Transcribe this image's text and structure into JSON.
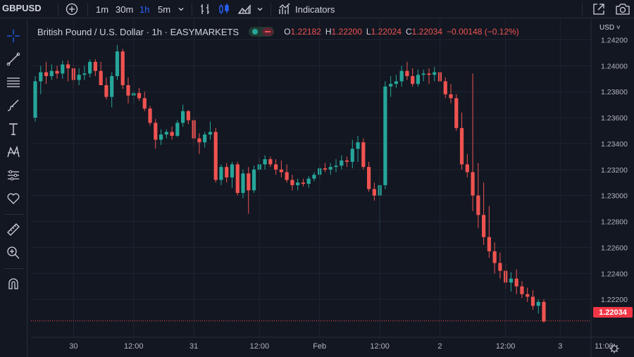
{
  "topbar": {
    "symbol": "GBPUSD",
    "intervals": [
      "1m",
      "30m",
      "1h",
      "5m"
    ],
    "active_interval": "1h",
    "indicators_label": "Indicators"
  },
  "legend": {
    "title": "British Pound / U.S. Dollar · 1h · EASYMARKETS",
    "o_label": "O",
    "o_value": "1.22182",
    "h_label": "H",
    "h_value": "1.22200",
    "l_label": "L",
    "l_value": "1.22024",
    "c_label": "C",
    "c_value": "1.22034",
    "change": "−0.00148 (−0.12%)"
  },
  "currency": "USD ˅",
  "last_price": "1.22034",
  "colors": {
    "up": "#26a69a",
    "down": "#ef5350",
    "bg": "#131722",
    "grid": "#1f2430",
    "text": "#b2b5be"
  },
  "chart_data": {
    "type": "candlestick",
    "y_ticks": [
      "1.24200",
      "1.24000",
      "1.23800",
      "1.23600",
      "1.23400",
      "1.23200",
      "1.23000",
      "1.22800",
      "1.22600",
      "1.22400",
      "1.22200"
    ],
    "y_tick_values": [
      1.242,
      1.24,
      1.238,
      1.236,
      1.234,
      1.232,
      1.23,
      1.228,
      1.226,
      1.224,
      1.222
    ],
    "x_ticks": [
      "30",
      "12:00",
      "31",
      "12:00",
      "Feb",
      "12:00",
      "2",
      "12:00",
      "3",
      "11:00"
    ],
    "ylim": [
      1.22,
      1.2436
    ],
    "last_price": 1.22034,
    "candles": [
      [
        1.236,
        1.2392,
        1.2357,
        1.2388
      ],
      [
        1.2388,
        1.24,
        1.2378,
        1.2395
      ],
      [
        1.2395,
        1.2403,
        1.2386,
        1.2392
      ],
      [
        1.2392,
        1.2401,
        1.2389,
        1.2396
      ],
      [
        1.2396,
        1.24,
        1.239,
        1.2394
      ],
      [
        1.2394,
        1.2404,
        1.239,
        1.2401
      ],
      [
        1.2401,
        1.2404,
        1.2388,
        1.2398
      ],
      [
        1.2398,
        1.2402,
        1.2383,
        1.2389
      ],
      [
        1.2389,
        1.2398,
        1.2385,
        1.2393
      ],
      [
        1.2393,
        1.24,
        1.2389,
        1.2394
      ],
      [
        1.2394,
        1.2405,
        1.2391,
        1.2403
      ],
      [
        1.2403,
        1.2405,
        1.2392,
        1.2396
      ],
      [
        1.2396,
        1.2403,
        1.2385,
        1.2385
      ],
      [
        1.2385,
        1.2391,
        1.2374,
        1.2376
      ],
      [
        1.2376,
        1.2395,
        1.2368,
        1.2392
      ],
      [
        1.2392,
        1.2416,
        1.2389,
        1.2411
      ],
      [
        1.2411,
        1.2413,
        1.2382,
        1.2385
      ],
      [
        1.2385,
        1.2391,
        1.2371,
        1.2377
      ],
      [
        1.2377,
        1.2381,
        1.237,
        1.2379
      ],
      [
        1.2379,
        1.2383,
        1.2373,
        1.2375
      ],
      [
        1.2375,
        1.238,
        1.2365,
        1.2367
      ],
      [
        1.2367,
        1.2369,
        1.2354,
        1.2356
      ],
      [
        1.2356,
        1.2359,
        1.2336,
        1.2343
      ],
      [
        1.2343,
        1.2351,
        1.2339,
        1.2347
      ],
      [
        1.2347,
        1.2351,
        1.2344,
        1.2349
      ],
      [
        1.2349,
        1.2353,
        1.2343,
        1.2346
      ],
      [
        1.2346,
        1.2358,
        1.2345,
        1.2356
      ],
      [
        1.2356,
        1.237,
        1.2353,
        1.2365
      ],
      [
        1.2365,
        1.2366,
        1.2355,
        1.2358
      ],
      [
        1.2358,
        1.236,
        1.2338,
        1.2344
      ],
      [
        1.2344,
        1.2348,
        1.2332,
        1.2341
      ],
      [
        1.2341,
        1.2349,
        1.2337,
        1.2347
      ],
      [
        1.2347,
        1.2357,
        1.2343,
        1.2349
      ],
      [
        1.2349,
        1.2352,
        1.231,
        1.2312
      ],
      [
        1.2312,
        1.2324,
        1.2308,
        1.2322
      ],
      [
        1.2322,
        1.2325,
        1.231,
        1.2314
      ],
      [
        1.2314,
        1.2326,
        1.2306,
        1.2324
      ],
      [
        1.2324,
        1.2326,
        1.23,
        1.2302
      ],
      [
        1.2302,
        1.232,
        1.2298,
        1.2317
      ],
      [
        1.2317,
        1.2322,
        1.2286,
        1.2304
      ],
      [
        1.2304,
        1.2323,
        1.2302,
        1.232
      ],
      [
        1.232,
        1.2329,
        1.2318,
        1.2324
      ],
      [
        1.2324,
        1.2331,
        1.232,
        1.2328
      ],
      [
        1.2328,
        1.233,
        1.2322,
        1.2324
      ],
      [
        1.2324,
        1.2328,
        1.2316,
        1.232
      ],
      [
        1.232,
        1.2327,
        1.2314,
        1.2318
      ],
      [
        1.2318,
        1.2324,
        1.231,
        1.2312
      ],
      [
        1.2312,
        1.2316,
        1.2304,
        1.2308
      ],
      [
        1.2308,
        1.2313,
        1.2304,
        1.231
      ],
      [
        1.231,
        1.2313,
        1.2307,
        1.2309
      ],
      [
        1.2309,
        1.2315,
        1.2306,
        1.2313
      ],
      [
        1.2313,
        1.2318,
        1.2311,
        1.2316
      ],
      [
        1.2316,
        1.2323,
        1.2313,
        1.2321
      ],
      [
        1.2321,
        1.2325,
        1.2318,
        1.232
      ],
      [
        1.232,
        1.2325,
        1.2316,
        1.2322
      ],
      [
        1.2322,
        1.2328,
        1.2318,
        1.2323
      ],
      [
        1.2323,
        1.2331,
        1.232,
        1.2327
      ],
      [
        1.2327,
        1.233,
        1.2322,
        1.2326
      ],
      [
        1.2326,
        1.2343,
        1.2321,
        1.2336
      ],
      [
        1.2336,
        1.2346,
        1.2326,
        1.2341
      ],
      [
        1.2341,
        1.2344,
        1.232,
        1.2322
      ],
      [
        1.2322,
        1.2326,
        1.2303,
        1.2305
      ],
      [
        1.2305,
        1.231,
        1.2296,
        1.23
      ],
      [
        1.23,
        1.231,
        1.2272,
        1.2308
      ],
      [
        1.2308,
        1.2388,
        1.2305,
        1.2384
      ],
      [
        1.2384,
        1.2392,
        1.2376,
        1.2386
      ],
      [
        1.2386,
        1.2393,
        1.2383,
        1.2388
      ],
      [
        1.2388,
        1.24,
        1.2384,
        1.2396
      ],
      [
        1.2396,
        1.2403,
        1.2389,
        1.2392
      ],
      [
        1.2392,
        1.2398,
        1.2384,
        1.2386
      ],
      [
        1.2386,
        1.2397,
        1.2384,
        1.2393
      ],
      [
        1.2393,
        1.2397,
        1.2388,
        1.2394
      ],
      [
        1.2394,
        1.2398,
        1.2386,
        1.2393
      ],
      [
        1.2393,
        1.2399,
        1.2388,
        1.2395
      ],
      [
        1.2395,
        1.2397,
        1.2385,
        1.2388
      ],
      [
        1.2388,
        1.2391,
        1.2375,
        1.2378
      ],
      [
        1.2378,
        1.2386,
        1.2371,
        1.2375
      ],
      [
        1.2375,
        1.2378,
        1.235,
        1.2352
      ],
      [
        1.2352,
        1.2364,
        1.232,
        1.2324
      ],
      [
        1.2324,
        1.2332,
        1.2314,
        1.2318
      ],
      [
        1.2318,
        1.2394,
        1.2288,
        1.23
      ],
      [
        1.23,
        1.2325,
        1.2275,
        1.2285
      ],
      [
        1.2285,
        1.231,
        1.2262,
        1.2268
      ],
      [
        1.2268,
        1.2292,
        1.2252,
        1.2257
      ],
      [
        1.2257,
        1.2264,
        1.224,
        1.2248
      ],
      [
        1.2248,
        1.2256,
        1.2236,
        1.2242
      ],
      [
        1.2242,
        1.2248,
        1.2228,
        1.2233
      ],
      [
        1.2233,
        1.2241,
        1.2226,
        1.2236
      ],
      [
        1.2236,
        1.2243,
        1.2224,
        1.223
      ],
      [
        1.223,
        1.2234,
        1.2221,
        1.2224
      ],
      [
        1.2224,
        1.2229,
        1.2218,
        1.2222
      ],
      [
        1.2222,
        1.2227,
        1.2212,
        1.2215
      ],
      [
        1.2215,
        1.222,
        1.2209,
        1.2218
      ],
      [
        1.2218,
        1.222,
        1.2202,
        1.2203
      ]
    ]
  }
}
